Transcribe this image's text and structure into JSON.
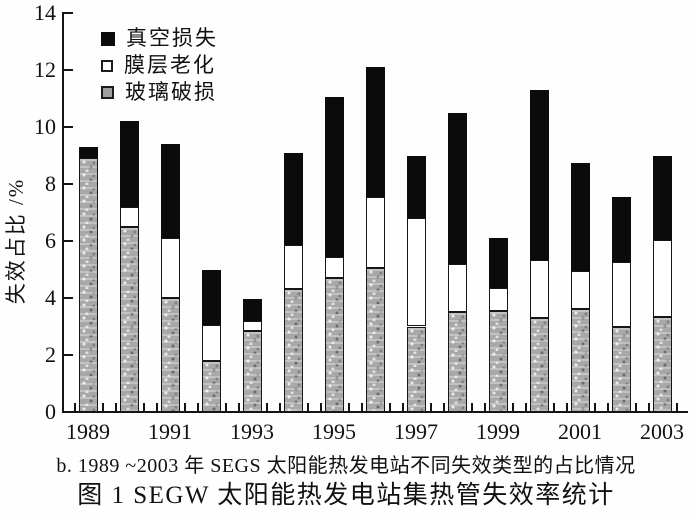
{
  "figure": {
    "subcaption": "b. 1989 ~2003 年 SEGS 太阳能热发电站不同失效类型的占比情况",
    "title": "图 1 SEGW 太阳能热发电站集热管失效率统计"
  },
  "chart_data": {
    "type": "bar",
    "stacked": true,
    "title": "图 1 SEGW 太阳能热发电站集热管失效率统计",
    "subtitle": "b. 1989 ~2003 年 SEGS 太阳能热发电站不同失效类型的占比情况",
    "ylabel": "失效占比 /%",
    "ylim": [
      0,
      14
    ],
    "ytick_step": 2,
    "ytick_labels": [
      "0",
      "2",
      "4",
      "6",
      "8",
      "10",
      "12",
      "14"
    ],
    "grid": false,
    "categories": [
      "1989",
      "1990",
      "1991",
      "1992",
      "1993",
      "1994",
      "1995",
      "1996",
      "1997",
      "1998",
      "1999",
      "2000",
      "2001",
      "2002",
      "2003"
    ],
    "xtick_labels": [
      "1989",
      "1991",
      "1993",
      "1995",
      "1997",
      "1999",
      "2001",
      "2003"
    ],
    "legend": {
      "position": "top-left-inside",
      "items": [
        {
          "label": "真空损失",
          "key": "vacuum",
          "marker": "black-filled-square",
          "color": "#0b0b0b"
        },
        {
          "label": "膜层老化",
          "key": "film",
          "marker": "white-hollow-square",
          "color": "#ffffff"
        },
        {
          "label": "玻璃破损",
          "key": "glass",
          "marker": "gray-filled-square",
          "color": "#a3a3a3"
        }
      ]
    },
    "series": [
      {
        "name": "玻璃破损",
        "key": "glass",
        "color": "#a8a8a8",
        "values": [
          8.9,
          6.5,
          4.0,
          1.8,
          2.85,
          4.3,
          4.7,
          5.05,
          3.0,
          3.5,
          3.55,
          3.3,
          3.6,
          3.0,
          3.35
        ]
      },
      {
        "name": "膜层老化",
        "key": "film",
        "color": "#ffffff",
        "values": [
          0.0,
          0.7,
          2.1,
          1.25,
          0.35,
          1.55,
          0.75,
          2.5,
          3.8,
          1.7,
          0.8,
          2.05,
          1.35,
          2.25,
          2.7
        ]
      },
      {
        "name": "真空损失",
        "key": "vacuum",
        "color": "#0b0b0b",
        "values": [
          0.4,
          3.0,
          3.3,
          1.95,
          0.75,
          3.25,
          5.6,
          4.55,
          2.2,
          5.3,
          1.75,
          5.95,
          3.8,
          2.3,
          2.95
        ]
      }
    ],
    "stack_order_bottom_to_top": [
      "玻璃破损",
      "膜层老化",
      "真空损失"
    ],
    "totals": [
      9.3,
      10.2,
      9.4,
      5.0,
      3.95,
      9.1,
      11.05,
      12.1,
      9.0,
      10.5,
      6.1,
      11.3,
      8.75,
      7.55,
      9.0
    ]
  }
}
